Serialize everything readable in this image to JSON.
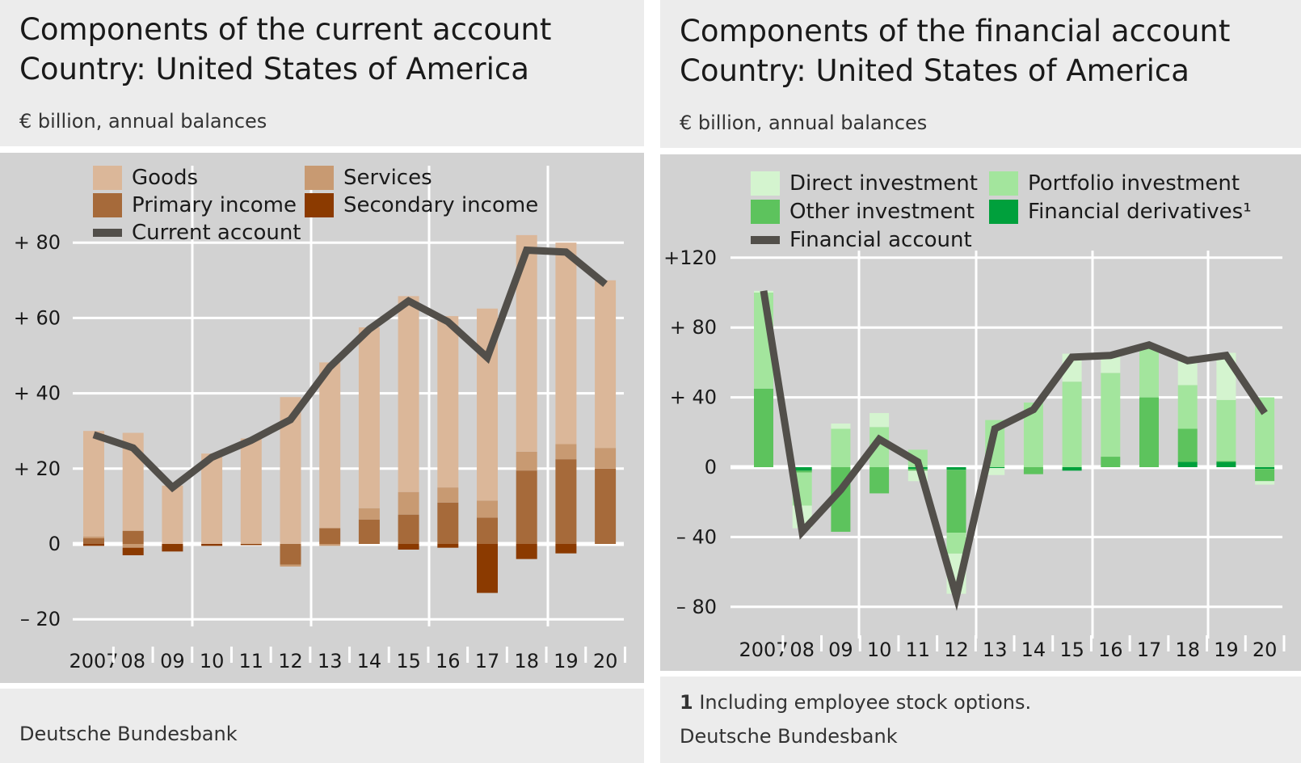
{
  "left": {
    "title_line1": "Components of the current account",
    "title_line2": "Country: United States of America",
    "subtitle": "€ billion, annual balances",
    "source": "Deutsche Bundesbank"
  },
  "right": {
    "title_line1": "Components of the financial account",
    "title_line2": "Country: United States of America",
    "subtitle": "€ billion, annual balances",
    "footnote_num": "1",
    "footnote_text": "Including employee stock options.",
    "source": "Deutsche Bundesbank"
  },
  "chart_data": [
    {
      "type": "bar",
      "stacked": true,
      "categories": [
        "2007",
        "08",
        "09",
        "10",
        "11",
        "12",
        "13",
        "14",
        "15",
        "16",
        "17",
        "18",
        "19",
        "20"
      ],
      "ylim": [
        -20,
        80
      ],
      "yticks": [
        -20,
        0,
        20,
        40,
        60,
        80
      ],
      "ytick_labels": [
        "– 20",
        "0",
        "+ 20",
        "+ 40",
        "+ 60",
        "+ 80"
      ],
      "grid": true,
      "legend_placement": "top-left",
      "series": [
        {
          "name": "Primary income",
          "color": "#a66a3a",
          "values": [
            1.5,
            3.5,
            0,
            0,
            0,
            -5.5,
            4.2,
            6.5,
            7.8,
            11,
            7,
            19.5,
            22.5,
            20
          ]
        },
        {
          "name": "Services",
          "color": "#c89a72",
          "values": [
            0.5,
            -1,
            0,
            0,
            0,
            -0.5,
            -0.5,
            3,
            6,
            4,
            4.5,
            5,
            4,
            5.5
          ]
        },
        {
          "name": "Goods",
          "color": "#dbb799",
          "values": [
            28,
            26,
            15.5,
            24,
            28,
            39,
            44,
            48,
            52,
            45.5,
            51,
            57.5,
            53.5,
            44.5
          ]
        },
        {
          "name": "Secondary income",
          "color": "#8b3a00",
          "values": [
            -0.5,
            -2,
            -2,
            -0.5,
            -0.3,
            0,
            0,
            0,
            -1.5,
            -1,
            -13,
            -4,
            -2.5,
            0
          ]
        }
      ],
      "line": {
        "name": "Current account",
        "color": "#524f4a",
        "values": [
          29,
          25.5,
          15,
          23,
          27.5,
          33,
          47,
          57,
          64.5,
          59,
          49.5,
          78,
          77.5,
          69
        ]
      },
      "legend_order": [
        "Goods",
        "Services",
        "Primary income",
        "Secondary income",
        "Current account"
      ]
    },
    {
      "type": "bar",
      "stacked": true,
      "categories": [
        "2007",
        "08",
        "09",
        "10",
        "11",
        "12",
        "13",
        "14",
        "15",
        "16",
        "17",
        "18",
        "19",
        "20"
      ],
      "ylim": [
        -80,
        120
      ],
      "yticks": [
        -80,
        -40,
        0,
        40,
        80,
        120
      ],
      "ytick_labels": [
        "–  80",
        "–  40",
        "0",
        "+  40",
        "+  80",
        "+120"
      ],
      "grid": true,
      "legend_placement": "top-left",
      "series": [
        {
          "name": "Financial derivatives¹",
          "color": "#00a03c",
          "values": [
            0,
            -2,
            0,
            0,
            -1,
            -1.5,
            -0.5,
            0,
            -2,
            0,
            0,
            3,
            3,
            -1
          ]
        },
        {
          "name": "Other investment",
          "color": "#5dc35d",
          "values": [
            45,
            -1,
            -37,
            -15,
            -1,
            -36,
            0,
            -4,
            0,
            6,
            40,
            19,
            0.5,
            -7
          ]
        },
        {
          "name": "Portfolio investment",
          "color": "#a3e59d",
          "values": [
            55,
            -19,
            22,
            23,
            10,
            -12,
            27,
            37,
            49,
            48,
            28,
            25,
            35,
            40
          ]
        },
        {
          "name": "Direct investment",
          "color": "#d4f4cf",
          "values": [
            1,
            -13,
            3,
            8,
            -6,
            -23,
            -4,
            0,
            16,
            11,
            0,
            14,
            27,
            -2
          ]
        }
      ],
      "line": {
        "name": "Financial account",
        "color": "#524f4a",
        "values": [
          101,
          -37,
          -13,
          16,
          3,
          -74,
          22,
          33,
          63,
          64,
          70,
          61,
          64,
          31
        ]
      },
      "legend_order": [
        "Direct investment",
        "Portfolio investment",
        "Other investment",
        "Financial derivatives¹",
        "Financial account"
      ]
    }
  ]
}
